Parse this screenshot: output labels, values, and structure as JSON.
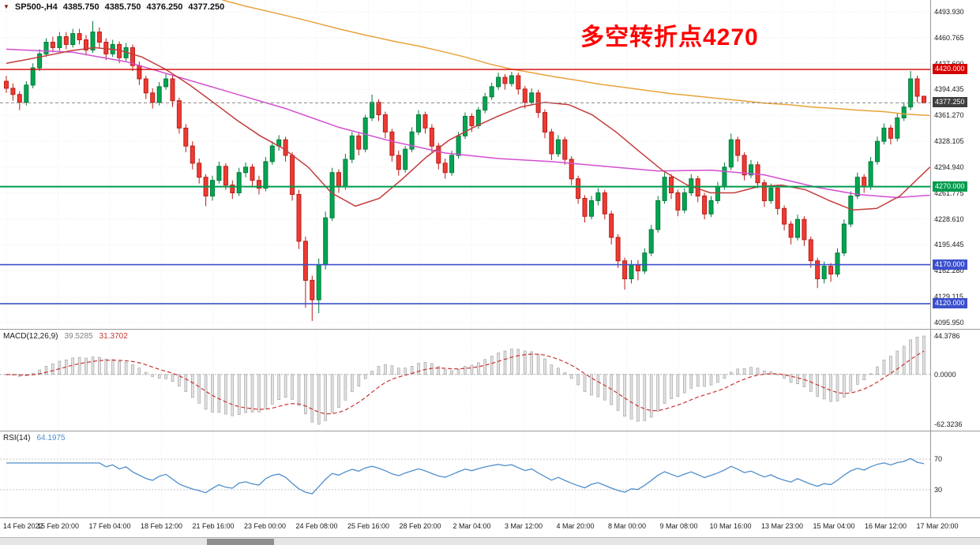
{
  "titlebar": {
    "symbol_timeframe": "SP500-,H4",
    "marker_glyph": "▼",
    "ohlc": [
      "4385.750",
      "4385.750",
      "4376.250",
      "4377.250"
    ]
  },
  "annotation": {
    "text": "多空转折点4270",
    "color": "#ff0000"
  },
  "colors": {
    "up": "#00a651",
    "up_border": "#027a3b",
    "down": "#ee3b33",
    "down_border": "#b81d17",
    "grid": "#ededed",
    "axis_text": "#1a1a1a",
    "current_price_line": "#888888"
  },
  "price_axis": {
    "ticks": [
      "4493.930",
      "4460.765",
      "4427.600",
      "4394.435",
      "4361.270",
      "4328.105",
      "4294.940",
      "4261.775",
      "4228.610",
      "4195.445",
      "4162.280",
      "4129.115",
      "4095.950"
    ],
    "levels": [
      {
        "price": 4420.0,
        "label": "4420.000",
        "color": "#d40000",
        "width": 1.4
      },
      {
        "price": 4270.0,
        "label": "4270.000",
        "color": "#009a4e",
        "width": 2
      },
      {
        "price": 4170.0,
        "label": "4170.000",
        "color": "#3c50cc",
        "width": 1.6
      },
      {
        "price": 4120.0,
        "label": "4120.000",
        "color": "#3c50cc",
        "width": 1.6
      }
    ],
    "current": {
      "price": 4377.25,
      "label": "4377.250",
      "color": "#3f3f3f"
    }
  },
  "date_axis": {
    "labels": [
      "14 Feb 2022",
      "15 Feb 20:00",
      "17 Feb 04:00",
      "18 Feb 12:00",
      "21 Feb 16:00",
      "23 Feb 00:00",
      "24 Feb 08:00",
      "25 Feb 16:00",
      "28 Feb 20:00",
      "2 Mar 04:00",
      "3 Mar 12:00",
      "4 Mar 20:00",
      "8 Mar 00:00",
      "9 Mar 08:00",
      "10 Mar 16:00",
      "13 Mar 23:00",
      "15 Mar 04:00",
      "16 Mar 12:00",
      "17 Mar 20:00"
    ]
  },
  "indicators": {
    "macd": {
      "label": "MACD(12,26,9)",
      "main_value": "39.5285",
      "signal_value": "31.3702",
      "axis_labels": [
        "44.3786",
        "0.0000",
        "-62.3236"
      ],
      "params": {
        "fast": 12,
        "slow": 26,
        "signal": 9
      },
      "colors": {
        "histogram": "#e2e2e2",
        "histogram_border": "#9c9c9c",
        "signal": "#cc3333",
        "value_main": "#7f7f7f"
      }
    },
    "rsi": {
      "label": "RSI(14)",
      "value": "64.1975",
      "period": 14,
      "levels": [
        "70",
        "30"
      ],
      "level_values": [
        70,
        30
      ],
      "color": "#4f8ecb"
    }
  },
  "chart_data": {
    "type": "candlestick",
    "symbol": "SP500-",
    "timeframe": "H4",
    "ylim": [
      4087,
      4509
    ],
    "levels": [
      4420,
      4270,
      4170,
      4120
    ],
    "candles": [
      [
        4405,
        4412,
        4390,
        4396
      ],
      [
        4396,
        4402,
        4380,
        4388
      ],
      [
        4388,
        4392,
        4368,
        4378
      ],
      [
        4378,
        4405,
        4374,
        4400
      ],
      [
        4400,
        4428,
        4396,
        4422
      ],
      [
        4422,
        4446,
        4418,
        4440
      ],
      [
        4440,
        4460,
        4436,
        4455
      ],
      [
        4455,
        4462,
        4442,
        4448
      ],
      [
        4448,
        4468,
        4444,
        4462
      ],
      [
        4462,
        4468,
        4446,
        4452
      ],
      [
        4452,
        4472,
        4448,
        4466
      ],
      [
        4466,
        4472,
        4452,
        4458
      ],
      [
        4458,
        4464,
        4438,
        4445
      ],
      [
        4445,
        4482,
        4441,
        4468
      ],
      [
        4468,
        4474,
        4448,
        4455
      ],
      [
        4455,
        4460,
        4432,
        4440
      ],
      [
        4440,
        4458,
        4436,
        4452
      ],
      [
        4452,
        4456,
        4428,
        4435
      ],
      [
        4435,
        4454,
        4431,
        4448
      ],
      [
        4448,
        4452,
        4418,
        4425
      ],
      [
        4425,
        4430,
        4400,
        4408
      ],
      [
        4408,
        4412,
        4382,
        4390
      ],
      [
        4390,
        4396,
        4370,
        4378
      ],
      [
        4378,
        4404,
        4374,
        4398
      ],
      [
        4398,
        4414,
        4394,
        4408
      ],
      [
        4408,
        4412,
        4372,
        4380
      ],
      [
        4380,
        4384,
        4338,
        4345
      ],
      [
        4345,
        4350,
        4314,
        4322
      ],
      [
        4322,
        4328,
        4292,
        4300
      ],
      [
        4300,
        4306,
        4274,
        4282
      ],
      [
        4282,
        4286,
        4245,
        4258
      ],
      [
        4258,
        4284,
        4252,
        4278
      ],
      [
        4278,
        4302,
        4274,
        4296
      ],
      [
        4296,
        4300,
        4266,
        4272
      ],
      [
        4272,
        4278,
        4254,
        4262
      ],
      [
        4262,
        4294,
        4258,
        4288
      ],
      [
        4288,
        4301,
        4282,
        4295
      ],
      [
        4295,
        4299,
        4270,
        4278
      ],
      [
        4278,
        4284,
        4260,
        4268
      ],
      [
        4268,
        4308,
        4264,
        4302
      ],
      [
        4302,
        4328,
        4298,
        4322
      ],
      [
        4322,
        4336,
        4316,
        4330
      ],
      [
        4330,
        4334,
        4302,
        4310
      ],
      [
        4310,
        4314,
        4252,
        4260
      ],
      [
        4260,
        4266,
        4190,
        4200
      ],
      [
        4200,
        4206,
        4115,
        4150
      ],
      [
        4150,
        4156,
        4098,
        4125
      ],
      [
        4125,
        4178,
        4108,
        4170
      ],
      [
        4170,
        4238,
        4164,
        4230
      ],
      [
        4230,
        4294,
        4226,
        4288
      ],
      [
        4288,
        4292,
        4262,
        4270
      ],
      [
        4270,
        4312,
        4266,
        4305
      ],
      [
        4305,
        4340,
        4300,
        4335
      ],
      [
        4335,
        4340,
        4310,
        4318
      ],
      [
        4318,
        4362,
        4314,
        4358
      ],
      [
        4358,
        4388,
        4354,
        4378
      ],
      [
        4378,
        4382,
        4354,
        4362
      ],
      [
        4362,
        4366,
        4332,
        4340
      ],
      [
        4340,
        4344,
        4302,
        4310
      ],
      [
        4310,
        4316,
        4284,
        4292
      ],
      [
        4292,
        4322,
        4288,
        4318
      ],
      [
        4318,
        4346,
        4314,
        4340
      ],
      [
        4340,
        4368,
        4336,
        4362
      ],
      [
        4362,
        4366,
        4338,
        4345
      ],
      [
        4345,
        4350,
        4314,
        4322
      ],
      [
        4322,
        4326,
        4292,
        4300
      ],
      [
        4300,
        4306,
        4280,
        4288
      ],
      [
        4288,
        4316,
        4284,
        4310
      ],
      [
        4310,
        4340,
        4306,
        4335
      ],
      [
        4335,
        4365,
        4331,
        4360
      ],
      [
        4360,
        4364,
        4340,
        4348
      ],
      [
        4348,
        4372,
        4344,
        4368
      ],
      [
        4368,
        4390,
        4364,
        4385
      ],
      [
        4385,
        4403,
        4381,
        4398
      ],
      [
        4398,
        4416,
        4394,
        4410
      ],
      [
        4410,
        4414,
        4394,
        4402
      ],
      [
        4402,
        4417,
        4398,
        4412
      ],
      [
        4412,
        4416,
        4388,
        4395
      ],
      [
        4395,
        4399,
        4370,
        4378
      ],
      [
        4378,
        4396,
        4374,
        4390
      ],
      [
        4390,
        4394,
        4358,
        4365
      ],
      [
        4365,
        4369,
        4332,
        4340
      ],
      [
        4340,
        4344,
        4304,
        4312
      ],
      [
        4312,
        4336,
        4308,
        4330
      ],
      [
        4330,
        4334,
        4298,
        4305
      ],
      [
        4305,
        4309,
        4272,
        4280
      ],
      [
        4280,
        4284,
        4248,
        4255
      ],
      [
        4255,
        4259,
        4224,
        4232
      ],
      [
        4232,
        4258,
        4228,
        4252
      ],
      [
        4252,
        4268,
        4246,
        4262
      ],
      [
        4262,
        4266,
        4228,
        4235
      ],
      [
        4235,
        4239,
        4196,
        4205
      ],
      [
        4205,
        4209,
        4166,
        4175
      ],
      [
        4175,
        4179,
        4138,
        4152
      ],
      [
        4152,
        4176,
        4146,
        4170
      ],
      [
        4170,
        4176,
        4150,
        4162
      ],
      [
        4162,
        4191,
        4158,
        4185
      ],
      [
        4185,
        4221,
        4181,
        4215
      ],
      [
        4215,
        4258,
        4211,
        4252
      ],
      [
        4252,
        4288,
        4248,
        4282
      ],
      [
        4282,
        4286,
        4254,
        4262
      ],
      [
        4262,
        4266,
        4232,
        4240
      ],
      [
        4240,
        4268,
        4236,
        4262
      ],
      [
        4262,
        4286,
        4258,
        4280
      ],
      [
        4280,
        4284,
        4250,
        4258
      ],
      [
        4258,
        4262,
        4228,
        4235
      ],
      [
        4235,
        4258,
        4231,
        4252
      ],
      [
        4252,
        4276,
        4248,
        4270
      ],
      [
        4270,
        4301,
        4266,
        4295
      ],
      [
        4295,
        4338,
        4291,
        4330
      ],
      [
        4330,
        4334,
        4302,
        4310
      ],
      [
        4310,
        4314,
        4278,
        4285
      ],
      [
        4285,
        4304,
        4281,
        4298
      ],
      [
        4298,
        4302,
        4268,
        4275
      ],
      [
        4275,
        4279,
        4244,
        4252
      ],
      [
        4252,
        4274,
        4248,
        4268
      ],
      [
        4268,
        4272,
        4234,
        4242
      ],
      [
        4242,
        4246,
        4214,
        4222
      ],
      [
        4222,
        4226,
        4196,
        4205
      ],
      [
        4205,
        4234,
        4201,
        4228
      ],
      [
        4228,
        4232,
        4194,
        4202
      ],
      [
        4202,
        4206,
        4166,
        4175
      ],
      [
        4175,
        4179,
        4140,
        4152
      ],
      [
        4152,
        4174,
        4146,
        4168
      ],
      [
        4168,
        4172,
        4148,
        4158
      ],
      [
        4158,
        4191,
        4154,
        4185
      ],
      [
        4185,
        4228,
        4181,
        4222
      ],
      [
        4222,
        4264,
        4218,
        4258
      ],
      [
        4258,
        4288,
        4254,
        4282
      ],
      [
        4282,
        4286,
        4262,
        4270
      ],
      [
        4270,
        4308,
        4266,
        4302
      ],
      [
        4302,
        4334,
        4298,
        4328
      ],
      [
        4328,
        4351,
        4324,
        4345
      ],
      [
        4345,
        4349,
        4324,
        4332
      ],
      [
        4332,
        4364,
        4328,
        4358
      ],
      [
        4358,
        4378,
        4354,
        4372
      ],
      [
        4372,
        4418,
        4368,
        4408
      ],
      [
        4408,
        4412,
        4378,
        4385.75
      ],
      [
        4385.75,
        4385.75,
        4376.25,
        4377.25
      ]
    ],
    "overlays": [
      {
        "name": "ma-slow-orange",
        "color": "#e8a33d",
        "points": [
          [
            32.5,
            4509
          ],
          [
            36,
            4501
          ],
          [
            40.6,
            4492
          ],
          [
            45,
            4483
          ],
          [
            50,
            4472
          ],
          [
            54,
            4464
          ],
          [
            58.4,
            4456
          ],
          [
            62,
            4450
          ],
          [
            65.6,
            4443
          ],
          [
            69,
            4436
          ],
          [
            72.7,
            4427
          ],
          [
            75.7,
            4421
          ],
          [
            79,
            4416
          ],
          [
            82.2,
            4411
          ],
          [
            86,
            4406
          ],
          [
            89.3,
            4401
          ],
          [
            93,
            4397
          ],
          [
            96.4,
            4393
          ],
          [
            100,
            4389
          ],
          [
            103.6,
            4386
          ],
          [
            107,
            4383
          ],
          [
            110.7,
            4380
          ],
          [
            114,
            4377
          ],
          [
            117.8,
            4375
          ],
          [
            121,
            4372
          ],
          [
            124.9,
            4370
          ],
          [
            128,
            4368
          ],
          [
            132.1,
            4366
          ],
          [
            135,
            4363
          ],
          [
            138.9,
            4361
          ]
        ]
      },
      {
        "name": "ma-mid-magenta",
        "color": "#d24fd2",
        "points": [
          [
            0,
            4446
          ],
          [
            10,
            4442
          ],
          [
            18,
            4430
          ],
          [
            26,
            4410
          ],
          [
            34,
            4390
          ],
          [
            42,
            4370
          ],
          [
            50,
            4346
          ],
          [
            58,
            4328
          ],
          [
            66,
            4313
          ],
          [
            74,
            4306
          ],
          [
            82,
            4302
          ],
          [
            90,
            4296
          ],
          [
            98,
            4290
          ],
          [
            106,
            4291
          ],
          [
            114,
            4285
          ],
          [
            122,
            4269
          ],
          [
            128,
            4260
          ],
          [
            134,
            4256
          ],
          [
            138.9,
            4259
          ]
        ]
      },
      {
        "name": "ma-fast-red",
        "color": "#c43c3c",
        "points": [
          [
            0,
            4428
          ],
          [
            2.6,
            4432
          ],
          [
            6.2,
            4438
          ],
          [
            9.7,
            4444
          ],
          [
            13.3,
            4448
          ],
          [
            16.9,
            4445
          ],
          [
            20.4,
            4436
          ],
          [
            24,
            4420
          ],
          [
            27.6,
            4400
          ],
          [
            31.1,
            4378
          ],
          [
            34.7,
            4355
          ],
          [
            38.2,
            4335
          ],
          [
            41.8,
            4318
          ],
          [
            45.4,
            4295
          ],
          [
            48.9,
            4262
          ],
          [
            52.5,
            4245
          ],
          [
            56.1,
            4255
          ],
          [
            59.6,
            4280
          ],
          [
            63.2,
            4308
          ],
          [
            66.7,
            4330
          ],
          [
            70.3,
            4346
          ],
          [
            73.9,
            4360
          ],
          [
            77.4,
            4372
          ],
          [
            81,
            4378
          ],
          [
            84.6,
            4375
          ],
          [
            88.1,
            4362
          ],
          [
            91.7,
            4340
          ],
          [
            95.2,
            4315
          ],
          [
            98.8,
            4290
          ],
          [
            102.4,
            4272
          ],
          [
            105.9,
            4262
          ],
          [
            109.5,
            4262
          ],
          [
            113.1,
            4270
          ],
          [
            116.6,
            4272
          ],
          [
            120.2,
            4266
          ],
          [
            123.8,
            4252
          ],
          [
            127.3,
            4240
          ],
          [
            130.9,
            4242
          ],
          [
            134.4,
            4258
          ],
          [
            138.9,
            4295
          ]
        ]
      }
    ]
  }
}
